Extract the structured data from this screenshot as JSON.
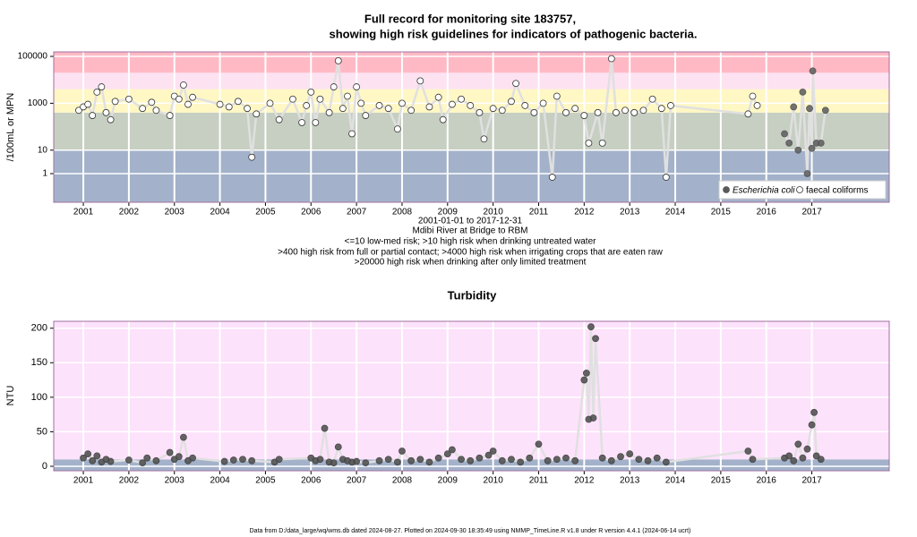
{
  "footer": "Data from D:/data_large/wq/wms.db dated 2024-08-27. Plotted on 2024-09-30 18:35:49 using NMMP_TimeLine.R v1.8 under R version 4.4.1 (2024-06-14 ucrt)",
  "chart_data": [
    {
      "type": "scatter",
      "title_lines": [
        "Full record for monitoring site 183757,",
        "showing high risk guidelines for indicators of pathogenic bacteria."
      ],
      "notes": [
        "2001-01-01 to 2017-12-31",
        "Mdibi River at Bridge to RBM",
        "<=10 low-med risk; >10 high risk when drinking untreated water",
        ">400 high risk from full or partial contact; >4000 high risk when irrigating crops that are eaten raw",
        ">20000 high risk when drinking after only limited treatment"
      ],
      "y_label": "/100mL or MPN",
      "log_y": true,
      "xlim": [
        2000.35,
        2018.7
      ],
      "xticks": [
        2001,
        2002,
        2003,
        2004,
        2005,
        2006,
        2007,
        2008,
        2009,
        2010,
        2011,
        2012,
        2013,
        2014,
        2015,
        2016,
        2017
      ],
      "ylim": [
        0.06,
        155000
      ],
      "yticks": [
        1,
        10,
        1000,
        100000
      ],
      "thresholds": [
        10,
        400,
        4000,
        20000
      ],
      "band_colors": [
        "#a3b2ca",
        "#c6cfc2",
        "#fff7c4",
        "#fde2f2",
        "#ffb9c5"
      ],
      "grid": true,
      "legend": "bottom-right",
      "series": [
        {
          "name": "Escherichia coli",
          "color": "#5a5a5a",
          "filled": true,
          "x": [
            2016.4,
            2016.5,
            2016.6,
            2016.7,
            2016.8,
            2016.9,
            2016.95,
            2017.0,
            2017.02,
            2017.1,
            2017.2,
            2017.3
          ],
          "values": [
            50,
            20,
            700,
            10,
            3000,
            1,
            600,
            12,
            24000,
            20,
            20,
            500
          ]
        },
        {
          "name": "faecal coliforms",
          "color": "#333333",
          "filled": false,
          "x": [
            2000.9,
            2001.0,
            2001.1,
            2001.2,
            2001.3,
            2001.4,
            2001.5,
            2001.6,
            2001.7,
            2002.0,
            2002.3,
            2002.5,
            2002.6,
            2002.9,
            2003.0,
            2003.1,
            2003.2,
            2003.3,
            2003.4,
            2004.0,
            2004.2,
            2004.4,
            2004.6,
            2004.7,
            2004.8,
            2005.1,
            2005.3,
            2005.6,
            2005.8,
            2005.9,
            2006.0,
            2006.1,
            2006.2,
            2006.4,
            2006.5,
            2006.6,
            2006.7,
            2006.8,
            2006.9,
            2007.0,
            2007.1,
            2007.2,
            2007.5,
            2007.7,
            2007.9,
            2008.0,
            2008.2,
            2008.4,
            2008.6,
            2008.8,
            2008.9,
            2009.1,
            2009.3,
            2009.5,
            2009.7,
            2009.8,
            2010.0,
            2010.2,
            2010.4,
            2010.5,
            2010.7,
            2010.9,
            2011.1,
            2011.3,
            2011.4,
            2011.6,
            2011.8,
            2012.0,
            2012.1,
            2012.3,
            2012.4,
            2012.6,
            2012.7,
            2012.9,
            2013.1,
            2013.3,
            2013.5,
            2013.7,
            2013.8,
            2013.9,
            2015.6,
            2015.7,
            2015.8
          ],
          "values": [
            500,
            700,
            900,
            300,
            3000,
            5000,
            400,
            200,
            1200,
            1500,
            600,
            1100,
            500,
            300,
            2000,
            1500,
            6000,
            900,
            1800,
            900,
            700,
            1200,
            600,
            5,
            350,
            1000,
            200,
            1500,
            150,
            800,
            3000,
            150,
            1500,
            400,
            5000,
            65000,
            600,
            2000,
            50,
            5000,
            1000,
            300,
            800,
            600,
            80,
            1000,
            500,
            9000,
            700,
            1800,
            200,
            900,
            1500,
            800,
            400,
            30,
            600,
            500,
            1200,
            7000,
            800,
            400,
            1000,
            0.7,
            2000,
            400,
            600,
            300,
            20,
            400,
            20,
            80000,
            400,
            500,
            400,
            500,
            1500,
            600,
            0.7,
            800,
            350,
            2000,
            800
          ]
        }
      ]
    },
    {
      "type": "scatter",
      "title": "Turbidity",
      "y_label": "NTU",
      "log_y": false,
      "xlim": [
        2000.35,
        2018.7
      ],
      "xticks": [
        2001,
        2002,
        2003,
        2004,
        2005,
        2006,
        2007,
        2008,
        2009,
        2010,
        2011,
        2012,
        2013,
        2014,
        2015,
        2016,
        2017
      ],
      "ylim": [
        -6.5,
        210
      ],
      "yticks": [
        0,
        50,
        100,
        150,
        200
      ],
      "thresholds": [
        10
      ],
      "band_colors": [
        "#a3b2ca",
        "#fde2fb"
      ],
      "grid": true,
      "series": [
        {
          "name": "Turbidity",
          "color": "#4a4a4a",
          "filled": true,
          "x": [
            2001.0,
            2001.1,
            2001.2,
            2001.3,
            2001.4,
            2001.5,
            2001.6,
            2002.0,
            2002.3,
            2002.4,
            2002.6,
            2002.9,
            2003.0,
            2003.1,
            2003.2,
            2003.3,
            2003.4,
            2004.1,
            2004.3,
            2004.5,
            2004.7,
            2005.2,
            2005.3,
            2006.0,
            2006.1,
            2006.2,
            2006.3,
            2006.4,
            2006.5,
            2006.6,
            2006.7,
            2006.8,
            2006.9,
            2007.0,
            2007.2,
            2007.5,
            2007.7,
            2007.9,
            2008.0,
            2008.2,
            2008.4,
            2008.6,
            2008.8,
            2009.0,
            2009.1,
            2009.3,
            2009.5,
            2009.7,
            2009.9,
            2010.0,
            2010.2,
            2010.4,
            2010.6,
            2010.8,
            2011.0,
            2011.2,
            2011.4,
            2011.6,
            2011.8,
            2012.0,
            2012.05,
            2012.1,
            2012.15,
            2012.2,
            2012.25,
            2012.4,
            2012.6,
            2012.8,
            2013.0,
            2013.2,
            2013.4,
            2013.6,
            2013.8,
            2015.6,
            2015.7,
            2016.4,
            2016.5,
            2016.6,
            2016.7,
            2016.8,
            2016.9,
            2017.0,
            2017.05,
            2017.1,
            2017.2
          ],
          "values": [
            12,
            18,
            8,
            15,
            6,
            10,
            7,
            9,
            5,
            12,
            8,
            20,
            10,
            14,
            42,
            8,
            12,
            7,
            9,
            10,
            8,
            6,
            10,
            12,
            8,
            10,
            55,
            6,
            5,
            28,
            10,
            8,
            6,
            7,
            5,
            8,
            10,
            6,
            22,
            8,
            10,
            6,
            12,
            18,
            24,
            10,
            8,
            12,
            16,
            22,
            8,
            10,
            6,
            12,
            32,
            8,
            10,
            12,
            8,
            125,
            135,
            68,
            202,
            70,
            185,
            12,
            8,
            14,
            18,
            10,
            8,
            12,
            6,
            22,
            10,
            12,
            15,
            8,
            32,
            12,
            25,
            60,
            78,
            15,
            10
          ]
        }
      ]
    }
  ]
}
